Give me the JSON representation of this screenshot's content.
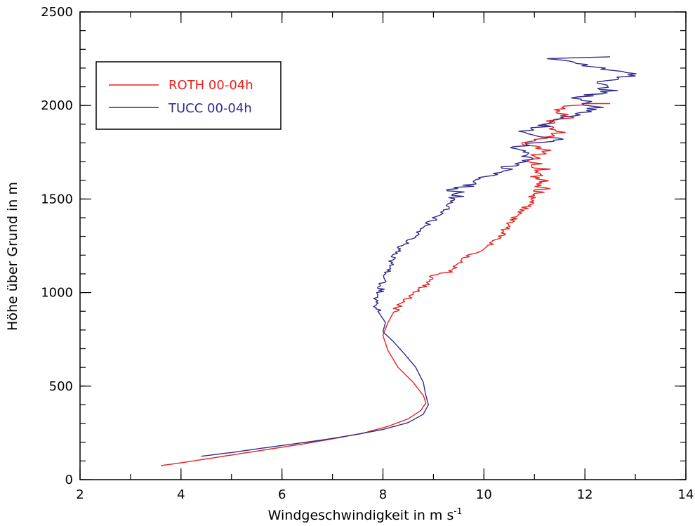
{
  "chart_data": {
    "type": "line",
    "title": "",
    "xlabel": "Windgeschwindigkeit in m s",
    "xlabel_superscript": "-1",
    "ylabel": "Höhe über Grund in m",
    "xlim": [
      2,
      14
    ],
    "ylim": [
      0,
      2500
    ],
    "x_ticks": [
      2,
      4,
      6,
      8,
      10,
      12,
      14
    ],
    "y_ticks": [
      0,
      500,
      1000,
      1500,
      2000,
      2500
    ],
    "x_minor_step": 1,
    "y_minor_step": 100,
    "grid": false,
    "legend_position": "top-left",
    "series": [
      {
        "name": "ROTH 00-04h",
        "color": "#e8221c",
        "points": [
          [
            3.6,
            75
          ],
          [
            4.0,
            90
          ],
          [
            4.6,
            115
          ],
          [
            5.2,
            140
          ],
          [
            5.8,
            165
          ],
          [
            6.4,
            190
          ],
          [
            7.0,
            218
          ],
          [
            7.6,
            248
          ],
          [
            8.1,
            285
          ],
          [
            8.5,
            325
          ],
          [
            8.75,
            370
          ],
          [
            8.85,
            410
          ],
          [
            8.8,
            450
          ],
          [
            8.6,
            520
          ],
          [
            8.3,
            600
          ],
          [
            8.1,
            690
          ],
          [
            8.0,
            770
          ],
          [
            8.1,
            840
          ],
          [
            8.2,
            890
          ],
          [
            8.35,
            940
          ],
          [
            8.6,
            990
          ],
          [
            8.9,
            1050
          ],
          [
            9.0,
            1090
          ],
          [
            9.3,
            1110
          ],
          [
            9.6,
            1180
          ],
          [
            10.0,
            1240
          ],
          [
            10.3,
            1290
          ],
          [
            10.4,
            1330
          ],
          [
            10.6,
            1400
          ],
          [
            10.8,
            1450
          ],
          [
            11.0,
            1490
          ],
          [
            11.1,
            1530
          ],
          [
            11.2,
            1580
          ],
          [
            11.0,
            1620
          ],
          [
            11.2,
            1660
          ],
          [
            10.9,
            1700
          ],
          [
            11.2,
            1760
          ],
          [
            10.7,
            1800
          ],
          [
            11.5,
            1850
          ],
          [
            11.2,
            1900
          ],
          [
            11.7,
            1940
          ],
          [
            11.4,
            1990
          ],
          [
            12.0,
            2010
          ],
          [
            12.5,
            2010
          ]
        ]
      },
      {
        "name": "TUCC 00-04h",
        "color": "#2e2a8f",
        "points": [
          [
            4.4,
            125
          ],
          [
            5.0,
            145
          ],
          [
            5.6,
            168
          ],
          [
            6.2,
            190
          ],
          [
            6.8,
            212
          ],
          [
            7.4,
            238
          ],
          [
            8.0,
            268
          ],
          [
            8.5,
            305
          ],
          [
            8.8,
            350
          ],
          [
            8.9,
            400
          ],
          [
            8.85,
            450
          ],
          [
            8.8,
            520
          ],
          [
            8.65,
            600
          ],
          [
            8.4,
            680
          ],
          [
            8.2,
            740
          ],
          [
            8.0,
            790
          ],
          [
            8.05,
            840
          ],
          [
            7.9,
            900
          ],
          [
            7.85,
            950
          ],
          [
            7.95,
            1000
          ],
          [
            8.0,
            1060
          ],
          [
            8.1,
            1120
          ],
          [
            8.2,
            1180
          ],
          [
            8.35,
            1240
          ],
          [
            8.6,
            1300
          ],
          [
            8.9,
            1370
          ],
          [
            9.2,
            1430
          ],
          [
            9.3,
            1470
          ],
          [
            9.5,
            1520
          ],
          [
            9.4,
            1550
          ],
          [
            9.8,
            1580
          ],
          [
            10.1,
            1620
          ],
          [
            10.4,
            1660
          ],
          [
            10.7,
            1700
          ],
          [
            11.0,
            1740
          ],
          [
            10.6,
            1780
          ],
          [
            11.5,
            1820
          ],
          [
            10.7,
            1850
          ],
          [
            11.3,
            1900
          ],
          [
            11.8,
            1950
          ],
          [
            12.2,
            1990
          ],
          [
            11.9,
            2040
          ],
          [
            12.5,
            2080
          ],
          [
            12.2,
            2120
          ],
          [
            13.1,
            2170
          ],
          [
            12.3,
            2200
          ],
          [
            11.4,
            2250
          ],
          [
            12.5,
            2260
          ]
        ]
      }
    ]
  }
}
